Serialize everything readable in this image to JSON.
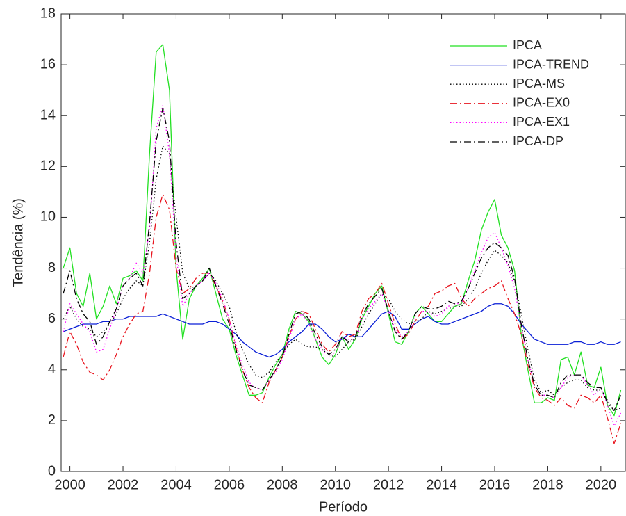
{
  "chart_data": {
    "type": "line",
    "xlabel": "Período",
    "ylabel": "Tendência (%)",
    "xlim": [
      1999.67,
      2020.92
    ],
    "ylim": [
      0,
      18
    ],
    "xticks": [
      2000,
      2002,
      2004,
      2006,
      2008,
      2010,
      2012,
      2014,
      2016,
      2018,
      2020
    ],
    "yticks": [
      0,
      2,
      4,
      6,
      8,
      10,
      12,
      14,
      16,
      18
    ],
    "grid": false,
    "legend": "upper right",
    "x": [
      1999.75,
      2000,
      2000.25,
      2000.5,
      2000.75,
      2001,
      2001.25,
      2001.5,
      2001.75,
      2002,
      2002.25,
      2002.5,
      2002.75,
      2003,
      2003.25,
      2003.5,
      2003.75,
      2004,
      2004.25,
      2004.5,
      2004.75,
      2005,
      2005.25,
      2005.5,
      2005.75,
      2006,
      2006.25,
      2006.5,
      2006.75,
      2007,
      2007.25,
      2007.5,
      2007.75,
      2008,
      2008.25,
      2008.5,
      2008.75,
      2009,
      2009.25,
      2009.5,
      2009.75,
      2010,
      2010.25,
      2010.5,
      2010.75,
      2011,
      2011.25,
      2011.5,
      2011.75,
      2012,
      2012.25,
      2012.5,
      2012.75,
      2013,
      2013.25,
      2013.5,
      2013.75,
      2014,
      2014.25,
      2014.5,
      2014.75,
      2015,
      2015.25,
      2015.5,
      2015.75,
      2016,
      2016.25,
      2016.5,
      2016.75,
      2017,
      2017.25,
      2017.5,
      2017.75,
      2018,
      2018.25,
      2018.5,
      2018.75,
      2019,
      2019.25,
      2019.5,
      2019.75,
      2020,
      2020.25,
      2020.5,
      2020.75
    ],
    "series": [
      {
        "name": "IPCA",
        "color": "#22e022",
        "style": "solid",
        "values": [
          8.0,
          8.8,
          7.0,
          6.5,
          7.8,
          6.0,
          6.5,
          7.3,
          6.6,
          7.6,
          7.7,
          7.9,
          7.5,
          12.5,
          16.5,
          16.8,
          15.0,
          8.0,
          5.2,
          6.8,
          7.3,
          7.6,
          8.0,
          7.0,
          6.0,
          5.6,
          4.6,
          3.8,
          3.0,
          3.0,
          3.1,
          3.7,
          4.2,
          4.6,
          5.6,
          6.3,
          6.2,
          5.9,
          5.2,
          4.5,
          4.2,
          4.6,
          5.3,
          4.8,
          5.2,
          6.0,
          6.5,
          7.0,
          7.3,
          6.2,
          5.1,
          5.0,
          5.5,
          6.2,
          6.5,
          6.2,
          5.9,
          5.9,
          6.2,
          6.5,
          6.6,
          7.5,
          8.3,
          9.5,
          10.2,
          10.7,
          9.3,
          8.8,
          7.9,
          5.4,
          4.0,
          2.7,
          2.7,
          2.9,
          2.8,
          4.4,
          4.5,
          3.8,
          4.7,
          3.4,
          3.3,
          4.1,
          2.6,
          2.2,
          3.2
        ]
      },
      {
        "name": "IPCA-TREND",
        "color": "#0a1fd6",
        "style": "solid",
        "values": [
          5.5,
          5.6,
          5.7,
          5.8,
          5.8,
          5.8,
          5.9,
          5.9,
          6.0,
          6.0,
          6.1,
          6.1,
          6.1,
          6.1,
          6.1,
          6.2,
          6.1,
          6.0,
          5.9,
          5.8,
          5.8,
          5.8,
          5.9,
          5.9,
          5.8,
          5.6,
          5.4,
          5.1,
          4.9,
          4.7,
          4.6,
          4.5,
          4.6,
          4.8,
          5.1,
          5.3,
          5.5,
          5.8,
          5.8,
          5.6,
          5.3,
          5.1,
          5.2,
          5.4,
          5.3,
          5.3,
          5.6,
          5.9,
          6.2,
          6.3,
          6.1,
          5.6,
          5.6,
          5.8,
          6.0,
          6.1,
          5.9,
          5.8,
          5.8,
          5.9,
          6.0,
          6.1,
          6.2,
          6.3,
          6.5,
          6.6,
          6.6,
          6.5,
          6.2,
          5.8,
          5.5,
          5.2,
          5.1,
          5.0,
          5.0,
          5.0,
          5.0,
          5.1,
          5.1,
          5.0,
          5.0,
          5.1,
          5.0,
          5.0,
          5.1
        ]
      },
      {
        "name": "IPCA-MS",
        "color": "#000000",
        "style": "dotted",
        "values": [
          6.0,
          6.5,
          6.0,
          5.7,
          5.6,
          5.3,
          5.5,
          5.8,
          6.2,
          6.8,
          7.2,
          7.5,
          7.3,
          9.0,
          11.5,
          12.8,
          12.5,
          10.0,
          7.8,
          7.2,
          7.3,
          7.5,
          7.8,
          7.5,
          7.0,
          6.5,
          5.5,
          4.8,
          4.2,
          3.8,
          3.7,
          3.9,
          4.3,
          4.6,
          5.0,
          5.2,
          5.0,
          4.9,
          4.9,
          4.8,
          4.6,
          4.5,
          4.8,
          5.1,
          5.2,
          5.7,
          6.2,
          6.6,
          7.0,
          6.8,
          6.3,
          6.0,
          5.8,
          5.9,
          6.0,
          6.3,
          6.2,
          6.3,
          6.4,
          6.5,
          6.5,
          6.8,
          7.2,
          7.8,
          8.3,
          8.7,
          8.5,
          8.2,
          7.5,
          6.2,
          4.8,
          3.6,
          3.1,
          3.2,
          3.0,
          3.3,
          3.5,
          3.6,
          3.6,
          3.3,
          3.2,
          3.2,
          2.8,
          2.4,
          2.5
        ]
      },
      {
        "name": "IPCA-EX0",
        "color": "#e8141e",
        "style": "dashdot",
        "values": [
          4.5,
          5.5,
          5.0,
          4.3,
          3.9,
          3.8,
          3.6,
          4.0,
          4.6,
          5.3,
          5.8,
          6.2,
          6.3,
          7.8,
          10.0,
          10.9,
          10.3,
          8.0,
          7.0,
          7.2,
          7.6,
          7.8,
          7.8,
          7.3,
          6.7,
          6.0,
          4.9,
          4.0,
          3.3,
          2.9,
          2.7,
          3.5,
          4.0,
          4.5,
          5.3,
          6.0,
          6.3,
          6.2,
          5.6,
          5.0,
          4.7,
          5.0,
          5.5,
          5.3,
          5.4,
          6.3,
          6.8,
          7.0,
          7.4,
          6.6,
          5.8,
          5.2,
          5.4,
          5.9,
          6.3,
          6.5,
          7.0,
          7.1,
          7.3,
          7.4,
          6.8,
          6.5,
          6.8,
          7.0,
          7.2,
          7.3,
          7.5,
          6.8,
          6.2,
          5.4,
          4.2,
          3.3,
          2.9,
          2.8,
          2.6,
          2.9,
          2.6,
          2.5,
          3.0,
          2.9,
          2.7,
          3.0,
          2.1,
          1.1,
          1.9
        ]
      },
      {
        "name": "IPCA-EX1",
        "color": "#ff00ff",
        "style": "dotted",
        "values": [
          5.5,
          6.6,
          6.2,
          5.8,
          5.5,
          4.7,
          4.8,
          5.6,
          6.4,
          7.3,
          7.6,
          8.2,
          7.8,
          9.5,
          13.5,
          14.4,
          12.5,
          8.5,
          6.5,
          7.0,
          7.3,
          7.5,
          7.8,
          7.4,
          6.8,
          6.0,
          5.0,
          4.2,
          3.5,
          3.3,
          3.2,
          3.6,
          3.9,
          4.4,
          5.2,
          6.0,
          6.2,
          5.8,
          5.2,
          4.8,
          4.5,
          4.7,
          5.3,
          5.2,
          5.2,
          6.0,
          6.4,
          6.7,
          7.0,
          6.3,
          5.6,
          5.3,
          5.5,
          6.1,
          6.3,
          6.3,
          6.1,
          6.2,
          6.5,
          6.6,
          6.6,
          7.2,
          7.9,
          8.6,
          9.2,
          9.4,
          8.8,
          8.1,
          7.2,
          5.7,
          4.4,
          3.4,
          3.0,
          3.0,
          2.9,
          3.3,
          3.7,
          3.8,
          3.8,
          3.4,
          3.0,
          3.3,
          2.6,
          1.8,
          2.3
        ]
      },
      {
        "name": "IPCA-DP",
        "color": "#000000",
        "style": "dashdot",
        "values": [
          7.0,
          7.9,
          6.8,
          6.2,
          5.9,
          5.0,
          5.3,
          5.9,
          6.4,
          7.3,
          7.6,
          7.8,
          7.3,
          9.8,
          13.0,
          14.3,
          13.0,
          9.0,
          6.8,
          7.0,
          7.3,
          7.5,
          8.0,
          7.3,
          6.6,
          5.8,
          4.8,
          4.0,
          3.4,
          3.3,
          3.2,
          3.6,
          4.0,
          4.5,
          5.4,
          6.2,
          6.3,
          6.0,
          5.4,
          4.9,
          4.6,
          4.8,
          5.3,
          5.1,
          5.3,
          6.1,
          6.6,
          6.9,
          7.2,
          6.3,
          5.5,
          5.2,
          5.5,
          6.2,
          6.5,
          6.4,
          6.4,
          6.5,
          6.7,
          6.6,
          6.7,
          7.2,
          7.8,
          8.4,
          8.8,
          9.0,
          8.8,
          8.5,
          7.6,
          5.8,
          4.4,
          3.4,
          3.0,
          3.0,
          2.9,
          3.5,
          3.8,
          3.8,
          3.8,
          3.5,
          3.3,
          3.3,
          2.7,
          2.4,
          3.0
        ]
      }
    ]
  }
}
